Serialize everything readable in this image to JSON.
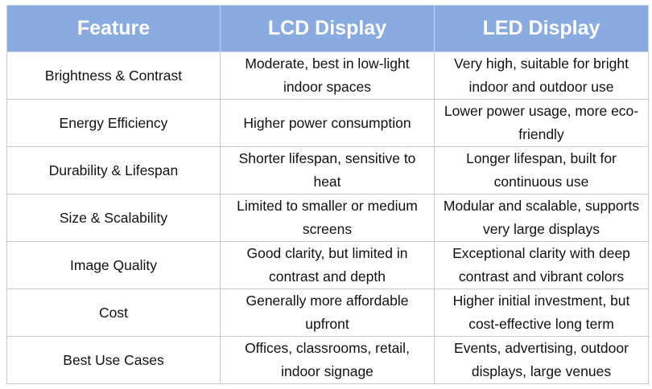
{
  "table": {
    "headers": [
      "Feature",
      "LCD Display",
      "LED Display"
    ],
    "rows": [
      [
        "Brightness & Contrast",
        "Moderate, best in low-light indoor spaces",
        "Very high, suitable for bright indoor and outdoor use"
      ],
      [
        "Energy Efficiency",
        "Higher power consumption",
        "Lower power usage, more eco-friendly"
      ],
      [
        "Durability & Lifespan",
        "Shorter lifespan, sensitive to heat",
        "Longer lifespan, built for continuous use"
      ],
      [
        "Size & Scalability",
        "Limited to smaller or medium screens",
        "Modular and scalable, supports very large displays"
      ],
      [
        "Image Quality",
        "Good clarity, but limited in contrast and depth",
        "Exceptional clarity with deep contrast and vibrant colors"
      ],
      [
        "Cost",
        "Generally more affordable upfront",
        "Higher initial investment, but cost-effective long term"
      ],
      [
        "Best Use Cases",
        "Offices, classrooms, retail, indoor signage",
        "Events, advertising, outdoor displays, large venues"
      ]
    ]
  },
  "colors": {
    "header_bg": "#8aabe0",
    "header_text": "#ffffff",
    "border": "#c8c8c8"
  }
}
